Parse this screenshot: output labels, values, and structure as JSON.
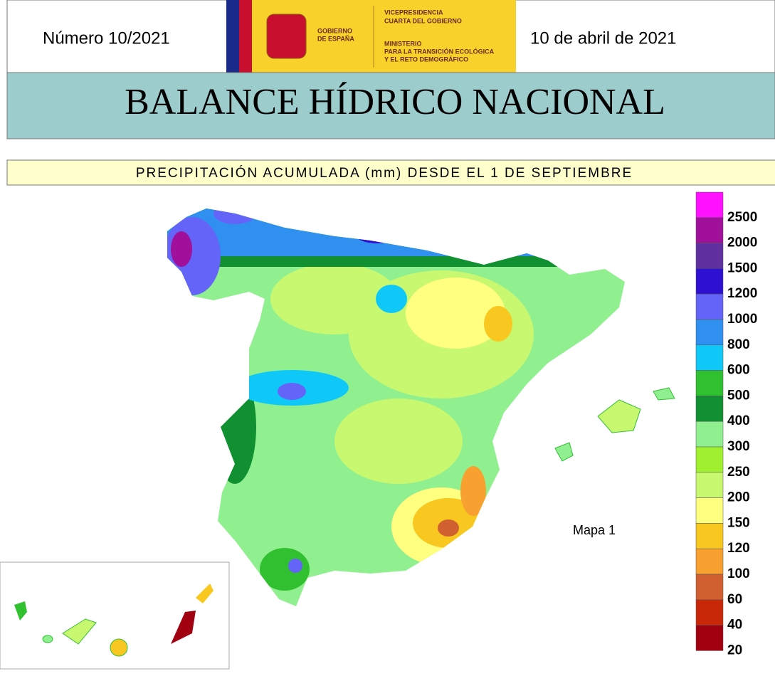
{
  "header": {
    "number": "Número 10/2021",
    "date": "10 de abril de 2021",
    "logo": {
      "government": [
        "GOBIERNO",
        "DE ESPAÑA"
      ],
      "vicepresidency": [
        "VICEPRESIDENCIA",
        "CUARTA DEL GOBIERNO"
      ],
      "ministry": [
        "MINISTERIO",
        "PARA LA TRANSICIÓN ECOLÓGICA",
        "Y EL RETO DEMOGRÁFICO"
      ]
    }
  },
  "title": "BALANCE HÍDRICO NACIONAL",
  "subtitle": "PRECIPITACIÓN ACUMULADA (mm) DESDE EL 1 DE SEPTIEMBRE",
  "map": {
    "label": "Mapa 1"
  },
  "legend": {
    "items": [
      {
        "label": "2500",
        "color": "#ff10ff"
      },
      {
        "label": "2000",
        "color": "#a0109a"
      },
      {
        "label": "1500",
        "color": "#6030a0"
      },
      {
        "label": "1200",
        "color": "#2e10d0"
      },
      {
        "label": "1000",
        "color": "#6464f8"
      },
      {
        "label": "800",
        "color": "#3090f0"
      },
      {
        "label": "600",
        "color": "#10c8f8"
      },
      {
        "label": "500",
        "color": "#30c030"
      },
      {
        "label": "400",
        "color": "#109030"
      },
      {
        "label": "300",
        "color": "#90f090"
      },
      {
        "label": "250",
        "color": "#a0f030"
      },
      {
        "label": "200",
        "color": "#c8f870"
      },
      {
        "label": "150",
        "color": "#ffff80"
      },
      {
        "label": "120",
        "color": "#f8c820"
      },
      {
        "label": "100",
        "color": "#f8a030"
      },
      {
        "label": "60",
        "color": "#d06030"
      },
      {
        "label": "40",
        "color": "#c82808"
      },
      {
        "label": "20",
        "color": "#a00010"
      }
    ]
  }
}
